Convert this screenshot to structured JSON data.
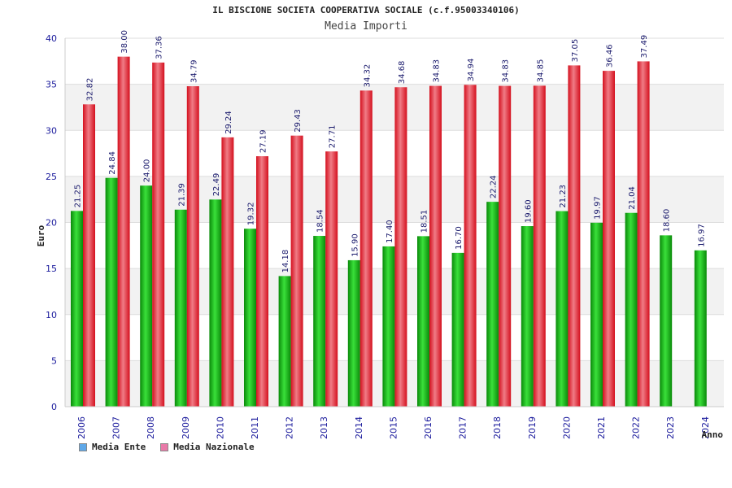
{
  "chart_data": {
    "type": "bar",
    "title": "IL BISCIONE SOCIETA COOPERATIVA SOCIALE (c.f.95003340106)",
    "subtitle": "Media Importi",
    "xlabel": "Anno",
    "ylabel": "Euro",
    "ylim": [
      0,
      40
    ],
    "yticks": [
      0,
      5,
      10,
      15,
      20,
      25,
      30,
      35,
      40
    ],
    "categories": [
      "2006",
      "2007",
      "2008",
      "2009",
      "2010",
      "2011",
      "2012",
      "2013",
      "2014",
      "2015",
      "2016",
      "2017",
      "2018",
      "2019",
      "2020",
      "2021",
      "2022",
      "2023",
      "2024"
    ],
    "series": [
      {
        "name": "Media Ente",
        "legend_color": "#5fa8e8",
        "bar_color": "#1fbf1f",
        "values": [
          21.25,
          24.84,
          24.0,
          21.39,
          22.49,
          19.32,
          14.18,
          18.54,
          15.9,
          17.4,
          18.51,
          16.7,
          22.24,
          19.6,
          21.23,
          19.97,
          21.04,
          18.6,
          16.97
        ],
        "labels": [
          "21.25",
          "24.84",
          "24.00",
          "21.39",
          "22.49",
          "19.32",
          "14.18",
          "18.54",
          "15.90",
          "17.40",
          "18.51",
          "16.70",
          "22.24",
          "19.60",
          "21.23",
          "19.97",
          "21.04",
          "18.60",
          "16.97"
        ]
      },
      {
        "name": "Media Nazionale",
        "legend_color": "#e87aa8",
        "bar_color": "#ee2233",
        "values": [
          32.82,
          38.0,
          37.36,
          34.79,
          29.24,
          27.19,
          29.43,
          27.71,
          34.32,
          34.68,
          34.83,
          34.94,
          34.83,
          34.85,
          37.05,
          36.46,
          37.49,
          null,
          null
        ],
        "labels": [
          "32.82",
          "38.00",
          "37.36",
          "34.79",
          "29.24",
          "27.19",
          "29.43",
          "27.71",
          "34.32",
          "34.68",
          "34.83",
          "34.94",
          "34.83",
          "34.85",
          "37.05",
          "36.46",
          "37.49",
          null,
          null
        ]
      }
    ],
    "grid": true,
    "legend_position": "bottom-left"
  }
}
